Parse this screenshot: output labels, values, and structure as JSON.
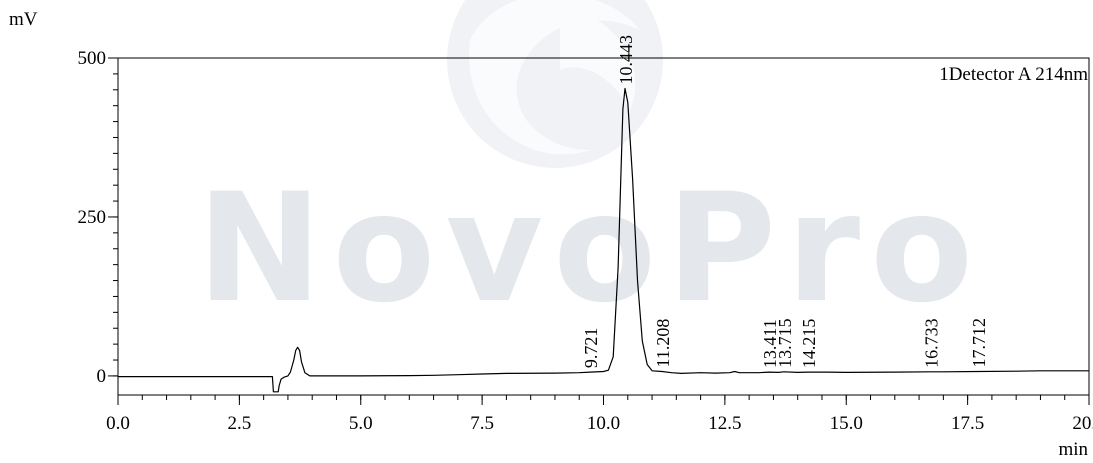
{
  "watermark": {
    "text": "NovoPro",
    "color": "#dfe3e8",
    "logo": "swirl-leaf-logo"
  },
  "chart_data": {
    "type": "line",
    "title": "",
    "ylabel": "mV",
    "xlabel": "min",
    "legend": "1Detector A 214nm",
    "legend_position": "top-right",
    "xlim": [
      0.0,
      20.0
    ],
    "ylim": [
      -30,
      500
    ],
    "x_ticks": [
      "0.0",
      "2.5",
      "5.0",
      "7.5",
      "10.0",
      "12.5",
      "15.0",
      "17.5",
      "20.0"
    ],
    "x_tick_values": [
      0.0,
      2.5,
      5.0,
      7.5,
      10.0,
      12.5,
      15.0,
      17.5,
      20.0
    ],
    "y_ticks": [
      "0",
      "250",
      "500"
    ],
    "y_tick_values": [
      0,
      250,
      500
    ],
    "grid": false,
    "series": [
      {
        "line_color": "#000000",
        "points": [
          [
            0.0,
            -1
          ],
          [
            1.0,
            -1
          ],
          [
            2.0,
            -1
          ],
          [
            3.0,
            -1
          ],
          [
            3.18,
            -1
          ],
          [
            3.2,
            -25
          ],
          [
            3.3,
            -25
          ],
          [
            3.32,
            -15
          ],
          [
            3.36,
            -5
          ],
          [
            3.42,
            -2
          ],
          [
            3.5,
            0
          ],
          [
            3.55,
            6
          ],
          [
            3.62,
            25
          ],
          [
            3.66,
            40
          ],
          [
            3.7,
            45
          ],
          [
            3.74,
            40
          ],
          [
            3.78,
            22
          ],
          [
            3.85,
            5
          ],
          [
            3.95,
            0
          ],
          [
            5.0,
            0
          ],
          [
            6.0,
            0.5
          ],
          [
            6.5,
            1
          ],
          [
            7.0,
            2
          ],
          [
            7.5,
            3
          ],
          [
            8.0,
            4
          ],
          [
            9.0,
            4.5
          ],
          [
            9.5,
            5
          ],
          [
            9.721,
            6
          ],
          [
            10.0,
            7
          ],
          [
            10.1,
            9
          ],
          [
            10.2,
            30
          ],
          [
            10.3,
            170
          ],
          [
            10.4,
            420
          ],
          [
            10.443,
            452
          ],
          [
            10.5,
            430
          ],
          [
            10.6,
            310
          ],
          [
            10.7,
            150
          ],
          [
            10.8,
            55
          ],
          [
            10.9,
            18
          ],
          [
            11.0,
            8
          ],
          [
            11.208,
            7
          ],
          [
            11.4,
            5
          ],
          [
            11.6,
            4
          ],
          [
            12.0,
            5
          ],
          [
            12.3,
            4.5
          ],
          [
            12.6,
            5
          ],
          [
            12.7,
            7
          ],
          [
            12.8,
            5
          ],
          [
            13.2,
            5
          ],
          [
            13.411,
            6
          ],
          [
            13.6,
            5.5
          ],
          [
            13.715,
            6.5
          ],
          [
            14.0,
            5.5
          ],
          [
            14.215,
            6
          ],
          [
            14.6,
            6
          ],
          [
            15.0,
            5.5
          ],
          [
            16.0,
            6
          ],
          [
            16.733,
            6.5
          ],
          [
            17.0,
            6.5
          ],
          [
            17.712,
            7
          ],
          [
            18.5,
            7.5
          ],
          [
            19.0,
            8
          ],
          [
            20.0,
            8
          ]
        ]
      }
    ],
    "peaks": [
      {
        "label": "9.721",
        "rt": 9.721,
        "y": 6
      },
      {
        "label": "10.443",
        "rt": 10.443,
        "y": 452
      },
      {
        "label": "11.208",
        "rt": 11.208,
        "y": 7
      },
      {
        "label": "13.411",
        "rt": 13.411,
        "y": 6
      },
      {
        "label": "13.715",
        "rt": 13.715,
        "y": 6.5
      },
      {
        "label": "14.215",
        "rt": 14.215,
        "y": 6
      },
      {
        "label": "16.733",
        "rt": 16.733,
        "y": 6.5
      },
      {
        "label": "17.712",
        "rt": 17.712,
        "y": 7
      }
    ]
  }
}
